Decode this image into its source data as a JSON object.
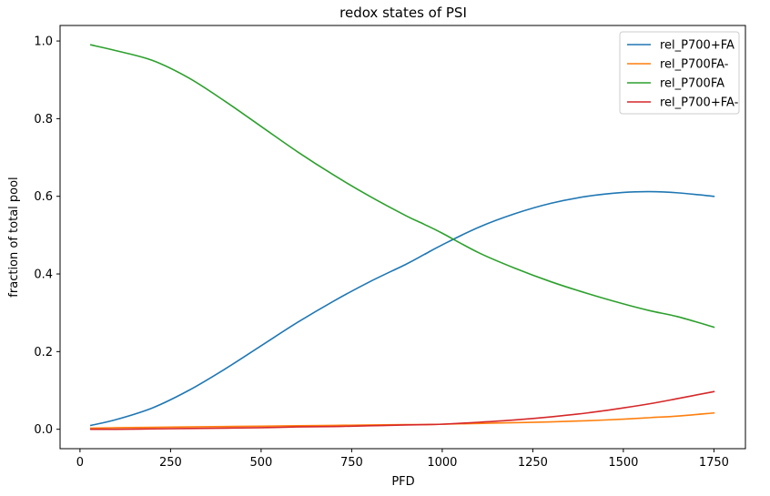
{
  "chart_data": {
    "type": "line",
    "title": "redox states of PSI",
    "xlabel": "PFD",
    "ylabel": "fraction of total pool",
    "xlim": [
      -55,
      1837
    ],
    "ylim": [
      -0.05,
      1.04
    ],
    "xticks": [
      0,
      250,
      500,
      750,
      1000,
      1250,
      1500,
      1750
    ],
    "xtick_labels": [
      "0",
      "250",
      "500",
      "750",
      "1000",
      "1250",
      "1500",
      "1750"
    ],
    "yticks": [
      0.0,
      0.2,
      0.4,
      0.6,
      0.8,
      1.0
    ],
    "ytick_labels": [
      "0.0",
      "0.2",
      "0.4",
      "0.6",
      "0.8",
      "1.0"
    ],
    "grid": false,
    "legend_position": "top-right",
    "x": [
      30,
      100,
      200,
      300,
      400,
      500,
      600,
      700,
      800,
      900,
      950,
      1000,
      1100,
      1200,
      1300,
      1400,
      1500,
      1575,
      1650,
      1750
    ],
    "series": [
      {
        "name": "rel_P700+FA",
        "color": "#1f77b4",
        "values": [
          0.01,
          0.025,
          0.055,
          0.1,
          0.155,
          0.215,
          0.275,
          0.33,
          0.38,
          0.425,
          0.45,
          0.475,
          0.52,
          0.555,
          0.582,
          0.6,
          0.61,
          0.612,
          0.609,
          0.6
        ]
      },
      {
        "name": "rel_P700FA-",
        "color": "#ff7f0e",
        "values": [
          0.003,
          0.004,
          0.005,
          0.006,
          0.007,
          0.008,
          0.009,
          0.01,
          0.011,
          0.012,
          0.012,
          0.013,
          0.015,
          0.017,
          0.019,
          0.022,
          0.026,
          0.03,
          0.034,
          0.042
        ]
      },
      {
        "name": "rel_P700FA",
        "color": "#2ca02c",
        "values": [
          0.99,
          0.975,
          0.95,
          0.905,
          0.845,
          0.78,
          0.715,
          0.655,
          0.6,
          0.55,
          0.528,
          0.505,
          0.455,
          0.415,
          0.38,
          0.35,
          0.323,
          0.305,
          0.29,
          0.263
        ]
      },
      {
        "name": "rel_P700+FA-",
        "color": "#d62728",
        "values": [
          0.0,
          0.0,
          0.001,
          0.002,
          0.003,
          0.004,
          0.006,
          0.007,
          0.009,
          0.011,
          0.012,
          0.013,
          0.018,
          0.024,
          0.032,
          0.042,
          0.055,
          0.066,
          0.079,
          0.097
        ]
      }
    ]
  }
}
